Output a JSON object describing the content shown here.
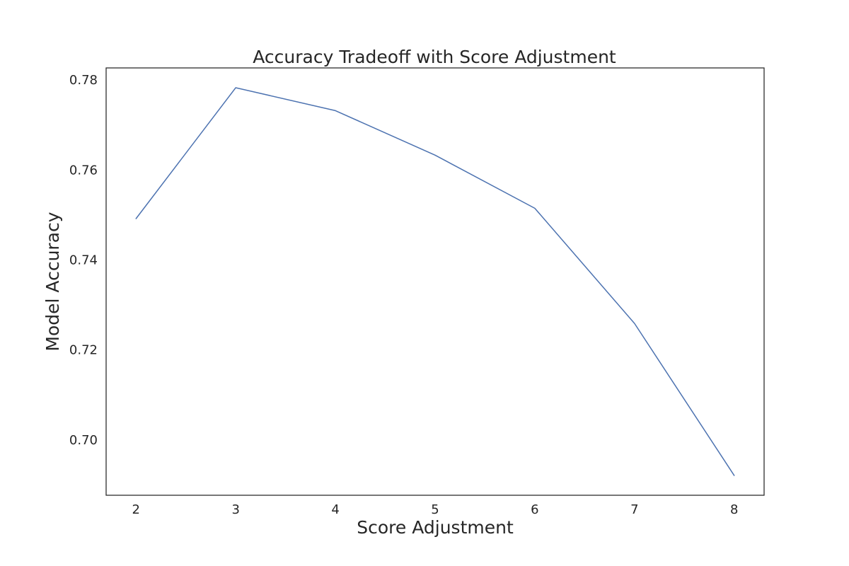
{
  "chart_data": {
    "type": "line",
    "title": "Accuracy Tradeoff with Score Adjustment",
    "xlabel": "Score Adjustment",
    "ylabel": "Model Accuracy",
    "x": [
      2,
      3,
      4,
      5,
      6,
      7,
      8
    ],
    "series": [
      {
        "values": [
          0.7492,
          0.7783,
          0.7732,
          0.7633,
          0.7515,
          0.7259,
          0.6921
        ],
        "color": "#4c72b0"
      }
    ],
    "xlim": [
      1.7,
      8.3
    ],
    "ylim": [
      0.6877,
      0.7827
    ],
    "x_ticks": [
      "2",
      "3",
      "4",
      "5",
      "6",
      "7",
      "8"
    ],
    "y_ticks": [
      "0.70",
      "0.72",
      "0.74",
      "0.76",
      "0.78"
    ],
    "grid": false,
    "legend": "none"
  }
}
